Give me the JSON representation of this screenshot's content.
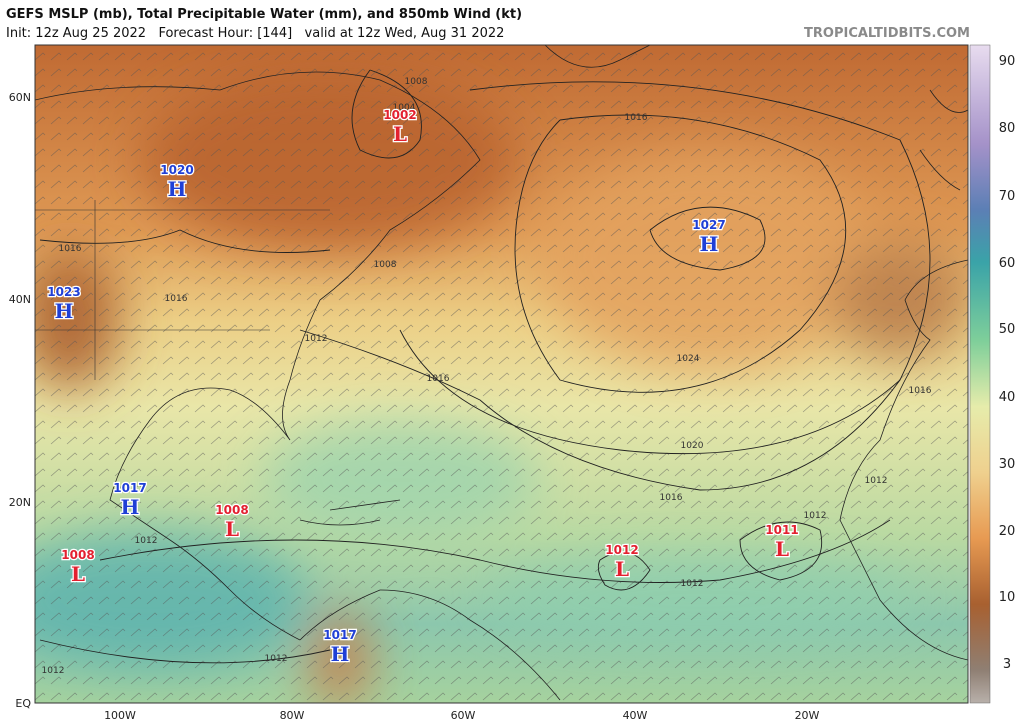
{
  "header": {
    "title": "GEFS MSLP (mb), Total Precipitable Water (mm), and 850mb Wind (kt)",
    "subtitle": "Init: 12z Aug 25 2022   Forecast Hour: [144]   valid at 12z Wed, Aug 31 2022",
    "credit": "TROPICALTIDBITS.COM"
  },
  "map": {
    "lat_labels": [
      "60N",
      "40N",
      "20N",
      "EQ"
    ],
    "lon_labels": [
      "100W",
      "80W",
      "60W",
      "40W",
      "20W"
    ],
    "centers": [
      {
        "value": "1002",
        "letter": "L"
      },
      {
        "value": "1020",
        "letter": "H"
      },
      {
        "value": "1027",
        "letter": "H"
      },
      {
        "value": "1023",
        "letter": "H"
      },
      {
        "value": "1017",
        "letter": "H"
      },
      {
        "value": "1008",
        "letter": "L"
      },
      {
        "value": "1008",
        "letter": "L"
      },
      {
        "value": "1012",
        "letter": "L"
      },
      {
        "value": "1011",
        "letter": "L"
      },
      {
        "value": "1017",
        "letter": "H"
      }
    ],
    "isobar_labels": [
      "1008",
      "1004",
      "1016",
      "1016",
      "1016",
      "1008",
      "1012",
      "1016",
      "1024",
      "1020",
      "1016",
      "1016",
      "1012",
      "1012",
      "1012",
      "1012",
      "1012",
      "1012"
    ]
  },
  "colorbar": {
    "labels": [
      90,
      80,
      70,
      60,
      50,
      40,
      30,
      20,
      10,
      3
    ]
  }
}
